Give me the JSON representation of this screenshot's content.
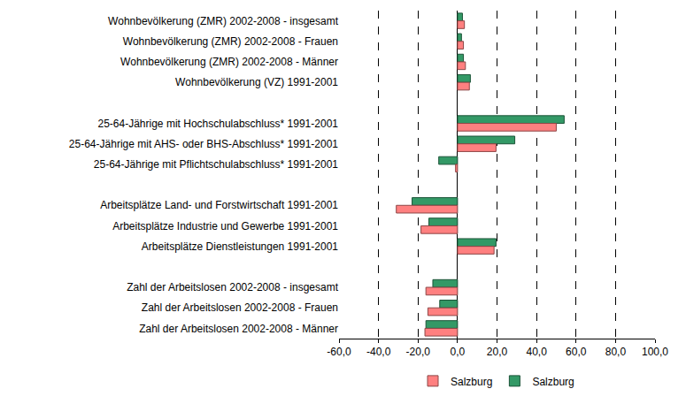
{
  "chart_data": {
    "type": "bar",
    "orientation": "horizontal",
    "categories": [
      "Wohnbevölkerung (ZMR) 2002-2008 - insgesamt",
      "Wohnbevölkerung (ZMR) 2002-2008 - Frauen",
      "Wohnbevölkerung (ZMR) 2002-2008 - Männer",
      "Wohnbevölkerung (VZ) 1991-2001",
      null,
      "25-64-Jährige mit Hochschulabschluss* 1991-2001",
      "25-64-Jährige mit AHS- oder BHS-Abschluss* 1991-2001",
      "25-64-Jährige mit Pflichtschulabschluss* 1991-2001",
      null,
      "Arbeitsplätze Land- und Forstwirtschaft 1991-2001",
      "Arbeitsplätze Industrie und Gewerbe 1991-2001",
      "Arbeitsplätze Dienstleistungen 1991-2001",
      null,
      "Zahl der Arbeitslosen 2002-2008 - insgesamt",
      "Zahl der Arbeitslosen 2002-2008 - Frauen",
      "Zahl der Arbeitslosen 2002-2008 - Männer"
    ],
    "series": [
      {
        "name": "Salzburg",
        "color": "#ff8080",
        "values": [
          3.5,
          3,
          4,
          6,
          null,
          50,
          19.5,
          -1,
          null,
          -31,
          -18.5,
          18.5,
          null,
          -16,
          -15,
          -16.5
        ]
      },
      {
        "name": "Salzburg",
        "color": "#339966",
        "values": [
          2.5,
          2,
          3,
          6.5,
          null,
          54,
          29,
          -9.5,
          null,
          -23,
          -14.5,
          19.5,
          null,
          -12.5,
          -9,
          -16
        ]
      }
    ],
    "xlim": [
      -60,
      100
    ],
    "xticks": [
      {
        "value": -60,
        "label": "-60,0"
      },
      {
        "value": -40,
        "label": "-40,0"
      },
      {
        "value": -20,
        "label": "-20,0"
      },
      {
        "value": 0,
        "label": "0,0"
      },
      {
        "value": 20,
        "label": "20,0"
      },
      {
        "value": 40,
        "label": "40,0"
      },
      {
        "value": 60,
        "label": "60,0"
      },
      {
        "value": 80,
        "label": "80,0"
      },
      {
        "value": 100,
        "label": "100,0"
      }
    ],
    "grid": true,
    "legend": "bottom"
  }
}
